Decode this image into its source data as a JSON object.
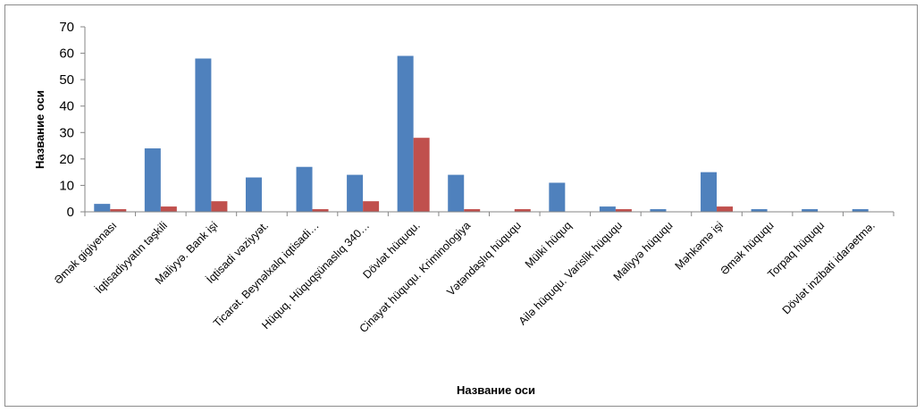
{
  "chart_data": {
    "type": "bar",
    "categories": [
      "Əmək gigiyenası",
      "İqtisadiyyatın təşkili",
      "Maliyyə. Bank işi",
      "İqtisadi vəziyyət.",
      "Ticarət. Beynəlxalq iqtisadi…",
      "Hüquq. Hüquqşünaslıq 340…",
      "Dövlət hüququ.",
      "Cinayət hüququ. Kriminologiya",
      "Vətəndaşlıq hüququ",
      "Mülki hüquq",
      "Ailə hüququ. Varislik hüququ",
      "Maliyyə hüququ",
      "Məhkəmə işi",
      "Əmək hüququ",
      "Torpaq hüququ",
      "Dövlət inzibati idarəetmə."
    ],
    "series": [
      {
        "values": [
          3,
          24,
          58,
          13,
          17,
          14,
          59,
          14,
          0,
          11,
          2,
          1,
          15,
          1,
          1,
          1
        ],
        "color": "#4F81BD"
      },
      {
        "values": [
          1,
          2,
          4,
          0,
          1,
          4,
          28,
          1,
          1,
          0,
          1,
          0,
          2,
          0,
          0,
          0
        ],
        "color": "#C0504D"
      }
    ],
    "xlabel": "Название оси",
    "ylabel": "Название оси",
    "ylim": [
      0,
      70
    ],
    "yticks": [
      0,
      10,
      20,
      30,
      40,
      50,
      60,
      70
    ],
    "grid": false,
    "legend": "none"
  }
}
